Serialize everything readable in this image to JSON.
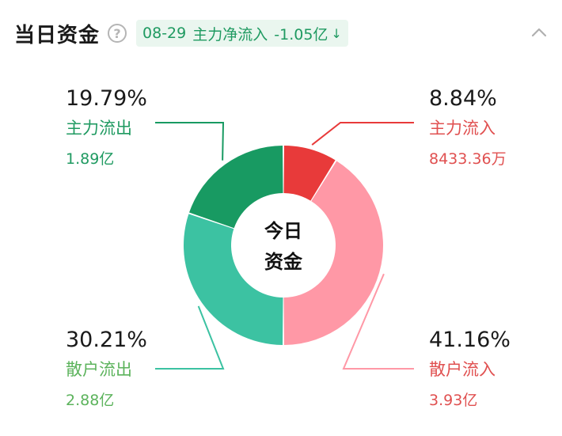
{
  "header": {
    "title": "当日资金",
    "help_glyph": "?",
    "badge_date": "08-29",
    "badge_label": "主力净流入",
    "badge_value": "-1.05亿",
    "badge_arrow": "↓"
  },
  "icons": {
    "help": "question-circle-icon",
    "collapse": "chevron-up-icon",
    "trend": "arrow-down-icon"
  },
  "colors": {
    "main_in": "#e83a3a",
    "retail_in": "#ff98a6",
    "main_out": "#189a62",
    "retail_out": "#3cc2a2",
    "green_text": "#1f9a61",
    "red_text": "#e05050",
    "retail_out_text": "#5cb35c"
  },
  "chart_data": {
    "type": "pie",
    "center_label": [
      "今日",
      "资金"
    ],
    "slices": [
      {
        "key": "main_in",
        "label": "主力流入",
        "percent": 8.84,
        "percent_text": "8.84%",
        "amount_text": "8433.36万"
      },
      {
        "key": "retail_in",
        "label": "散户流入",
        "percent": 41.16,
        "percent_text": "41.16%",
        "amount_text": "3.93亿"
      },
      {
        "key": "retail_out",
        "label": "散户流出",
        "percent": 30.21,
        "percent_text": "30.21%",
        "amount_text": "2.88亿"
      },
      {
        "key": "main_out",
        "label": "主力流出",
        "percent": 19.79,
        "percent_text": "19.79%",
        "amount_text": "1.89亿"
      }
    ]
  }
}
